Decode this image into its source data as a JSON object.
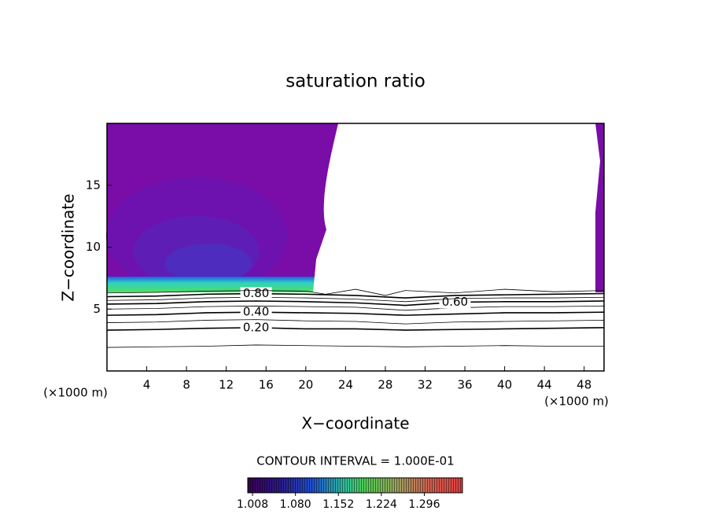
{
  "chart_data": {
    "type": "contour",
    "title": "saturation ratio",
    "xlabel": "X−coordinate",
    "ylabel": "Z−coordinate",
    "x_unit": "(×1000 m)",
    "xlim": [
      0,
      50
    ],
    "ylim": [
      0,
      20
    ],
    "xticks": [
      4,
      8,
      12,
      16,
      20,
      24,
      28,
      32,
      36,
      40,
      44,
      48
    ],
    "yticks": [
      5,
      10,
      15
    ],
    "contour_interval": "CONTOUR INTERVAL = 1.000E-01",
    "contours": [
      {
        "level": 0.1,
        "x": [
          0,
          5,
          10,
          15,
          20,
          25,
          30,
          35,
          40,
          45,
          50
        ],
        "y": [
          1.9,
          1.95,
          2.0,
          2.1,
          2.05,
          2.0,
          1.95,
          2.0,
          2.05,
          2.0,
          2.0
        ]
      },
      {
        "level": 0.2,
        "label": "0.20",
        "x": [
          0,
          5,
          10,
          15,
          20,
          25,
          30,
          35,
          40,
          45,
          50
        ],
        "y": [
          3.3,
          3.35,
          3.45,
          3.5,
          3.4,
          3.4,
          3.3,
          3.35,
          3.4,
          3.45,
          3.5
        ]
      },
      {
        "level": 0.3,
        "x": [
          0,
          5,
          10,
          15,
          20,
          25,
          30,
          35,
          40,
          45,
          50
        ],
        "y": [
          3.9,
          3.95,
          4.1,
          4.15,
          4.05,
          4.0,
          3.8,
          3.95,
          4.0,
          4.05,
          4.1
        ]
      },
      {
        "level": 0.4,
        "label": "0.40",
        "x": [
          0,
          5,
          10,
          15,
          20,
          25,
          30,
          35,
          40,
          45,
          50
        ],
        "y": [
          4.5,
          4.55,
          4.7,
          4.75,
          4.7,
          4.65,
          4.5,
          4.6,
          4.7,
          4.7,
          4.75
        ]
      },
      {
        "level": 0.5,
        "x": [
          0,
          5,
          10,
          15,
          20,
          25,
          30,
          35,
          40,
          45,
          50
        ],
        "y": [
          5.0,
          5.05,
          5.2,
          5.25,
          5.2,
          5.15,
          4.9,
          5.1,
          5.2,
          5.2,
          5.25
        ]
      },
      {
        "level": 0.6,
        "label": "0.60",
        "x": [
          0,
          5,
          10,
          15,
          20,
          25,
          30,
          35,
          40,
          45,
          50
        ],
        "y": [
          5.4,
          5.45,
          5.6,
          5.65,
          5.6,
          5.5,
          5.3,
          5.55,
          5.6,
          5.6,
          5.65
        ]
      },
      {
        "level": 0.7,
        "x": [
          0,
          5,
          10,
          15,
          20,
          25,
          30,
          35,
          40,
          45,
          50
        ],
        "y": [
          5.7,
          5.75,
          5.9,
          5.95,
          5.9,
          5.8,
          5.6,
          5.85,
          5.9,
          5.9,
          5.95
        ]
      },
      {
        "level": 0.8,
        "label": "0.80",
        "x": [
          0,
          5,
          10,
          15,
          20,
          25,
          30,
          35,
          40,
          45,
          50
        ],
        "y": [
          6.0,
          6.05,
          6.2,
          6.25,
          6.2,
          6.1,
          5.9,
          6.1,
          6.15,
          6.2,
          6.25
        ]
      },
      {
        "level": 0.9,
        "x": [
          0,
          5,
          10,
          15,
          20,
          22,
          25,
          28,
          30,
          35,
          40,
          45,
          50
        ],
        "y": [
          6.3,
          6.35,
          6.45,
          6.5,
          6.45,
          6.2,
          6.6,
          6.1,
          6.5,
          6.3,
          6.6,
          6.4,
          6.5
        ]
      }
    ],
    "colorbar": {
      "lim": [
        1.0,
        1.36
      ],
      "ticks": [
        1.008,
        {
          "value": 1.08,
          "label": "1.080"
        },
        1.152,
        1.224,
        1.296
      ]
    }
  }
}
